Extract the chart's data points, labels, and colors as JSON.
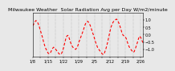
{
  "title": "Milwaukee Weather  Solar Radiation Avg per Day W/m2/minute",
  "line_color": "red",
  "background_color": "#e8e8e8",
  "ylim": [
    -1.5,
    1.5
  ],
  "x_values": [
    0,
    1,
    2,
    3,
    4,
    5,
    6,
    7,
    8,
    9,
    10,
    11,
    12,
    13,
    14,
    15,
    16,
    17,
    18,
    19,
    20,
    21,
    22,
    23,
    24,
    25,
    26,
    27,
    28,
    29,
    30,
    31,
    32,
    33,
    34,
    35,
    36,
    37,
    38,
    39,
    40,
    41,
    42,
    43,
    44,
    45,
    46,
    47,
    48,
    49,
    50,
    51,
    52,
    53,
    54,
    55,
    56,
    57,
    58,
    59,
    60,
    61,
    62,
    63,
    64,
    65,
    66,
    67,
    68,
    69,
    70,
    71,
    72,
    73,
    74,
    75,
    76,
    77,
    78,
    79,
    80,
    81,
    82,
    83,
    84,
    85,
    86,
    87,
    88,
    89,
    90,
    91,
    92,
    93,
    94,
    95,
    96,
    97,
    98,
    99,
    100
  ],
  "y_values": [
    0.6,
    0.7,
    0.85,
    0.95,
    0.9,
    0.75,
    0.55,
    0.3,
    0.05,
    -0.2,
    -0.5,
    -0.75,
    -0.95,
    -1.1,
    -1.25,
    -1.3,
    -1.25,
    -1.1,
    -0.95,
    -0.85,
    -0.9,
    -1.0,
    -1.1,
    -1.2,
    -1.3,
    -1.35,
    -1.3,
    -1.15,
    -0.9,
    -0.6,
    -0.3,
    -0.1,
    -0.05,
    -0.2,
    -0.45,
    -0.65,
    -0.8,
    -0.9,
    -0.95,
    -1.0,
    -0.9,
    -0.75,
    -0.5,
    -0.3,
    -0.1,
    0.1,
    0.3,
    0.55,
    0.75,
    0.85,
    0.9,
    0.8,
    0.65,
    0.45,
    0.2,
    0.0,
    -0.25,
    -0.5,
    -0.7,
    -0.9,
    -1.0,
    -1.1,
    -1.2,
    -1.3,
    -1.35,
    -1.25,
    -1.05,
    -0.8,
    -0.5,
    -0.15,
    0.2,
    0.5,
    0.7,
    0.85,
    0.95,
    1.0,
    1.05,
    0.95,
    0.8,
    0.6,
    0.35,
    0.1,
    -0.05,
    -0.1,
    -0.15,
    -0.3,
    -0.55,
    -0.75,
    -0.9,
    -1.0,
    -1.1,
    -1.2,
    -1.15,
    -0.95,
    -0.75,
    -0.5,
    -0.25,
    -0.1,
    -0.2,
    -0.4,
    -0.55
  ],
  "xtick_positions": [
    0,
    7,
    14,
    21,
    28,
    35,
    42,
    49,
    56,
    63,
    70,
    77,
    84,
    91,
    98
  ],
  "xtick_labels": [
    "1/8",
    "",
    "1/15",
    "",
    "1/22",
    "",
    "1/29",
    "",
    "2/5",
    "",
    "2/12",
    "",
    "2/19",
    "",
    "2/26"
  ],
  "ytick_values": [
    -1.0,
    -0.5,
    0.0,
    0.5,
    1.0
  ],
  "grid_positions": [
    7,
    14,
    21,
    28,
    35,
    42,
    49,
    56,
    63,
    70,
    77,
    84,
    91,
    98
  ],
  "title_fontsize": 4.5,
  "tick_fontsize": 3.5,
  "line_width": 0.8,
  "dash_on": 3,
  "dash_off": 2
}
